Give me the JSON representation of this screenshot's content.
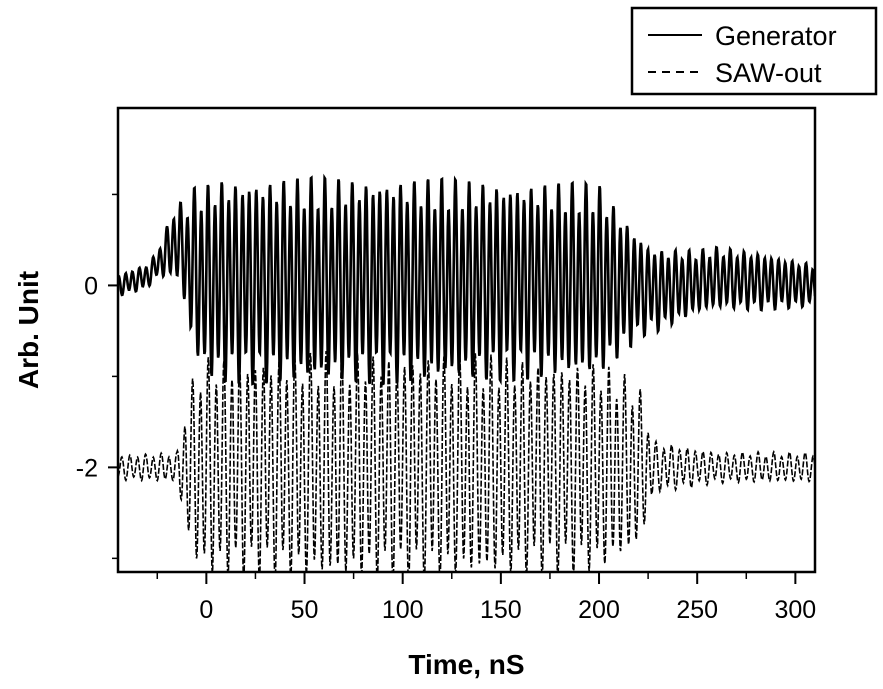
{
  "chart_data": {
    "type": "line",
    "xlabel": "Time, nS",
    "ylabel": "Arb. Unit",
    "xlim": [
      -45,
      310
    ],
    "ylim": [
      -3.15,
      1.95
    ],
    "x_ticks": [
      {
        "value": 0,
        "label": "0"
      },
      {
        "value": 50,
        "label": "50"
      },
      {
        "value": 100,
        "label": "100"
      },
      {
        "value": 150,
        "label": "150"
      },
      {
        "value": 200,
        "label": "200"
      },
      {
        "value": 250,
        "label": "250"
      },
      {
        "value": 300,
        "label": "300"
      }
    ],
    "y_ticks": [
      {
        "value": 0,
        "label": "0"
      },
      {
        "value": -2,
        "label": "-2"
      }
    ],
    "y_minor_ticks": [
      1,
      -1,
      -3
    ],
    "grid": false,
    "legend_position": "top-right",
    "series": [
      {
        "name": "Generator",
        "style": "solid",
        "color": "#000000",
        "baseline": 0,
        "period_ns": 3.5,
        "envelope": [
          [
            -45,
            0.1
          ],
          [
            -25,
            0.12
          ],
          [
            -12,
            0.45
          ],
          [
            -5,
            0.85
          ],
          [
            5,
            0.98
          ],
          [
            50,
            0.98
          ],
          [
            100,
            0.98
          ],
          [
            150,
            0.95
          ],
          [
            200,
            0.92
          ],
          [
            215,
            0.6
          ],
          [
            225,
            0.42
          ],
          [
            250,
            0.3
          ],
          [
            280,
            0.28
          ],
          [
            310,
            0.2
          ]
        ],
        "drift": [
          [
            -45,
            0
          ],
          [
            -30,
            0.1
          ],
          [
            -15,
            0.5
          ],
          [
            -8,
            0.2
          ],
          [
            0,
            0.05
          ],
          [
            100,
            0.05
          ],
          [
            200,
            0.05
          ],
          [
            230,
            -0.05
          ],
          [
            260,
            0.08
          ],
          [
            310,
            0
          ]
        ]
      },
      {
        "name": "SAW-out",
        "style": "dashed",
        "color": "#000000",
        "baseline": -2,
        "period_ns": 4.0,
        "envelope": [
          [
            -45,
            0.12
          ],
          [
            -15,
            0.14
          ],
          [
            -10,
            0.65
          ],
          [
            -5,
            0.95
          ],
          [
            0,
            1.05
          ],
          [
            50,
            1.08
          ],
          [
            100,
            1.1
          ],
          [
            150,
            1.05
          ],
          [
            200,
            1.0
          ],
          [
            220,
            0.8
          ],
          [
            228,
            0.25
          ],
          [
            260,
            0.15
          ],
          [
            310,
            0.14
          ]
        ],
        "drift": [
          [
            -45,
            0
          ],
          [
            310,
            0
          ]
        ]
      }
    ]
  }
}
